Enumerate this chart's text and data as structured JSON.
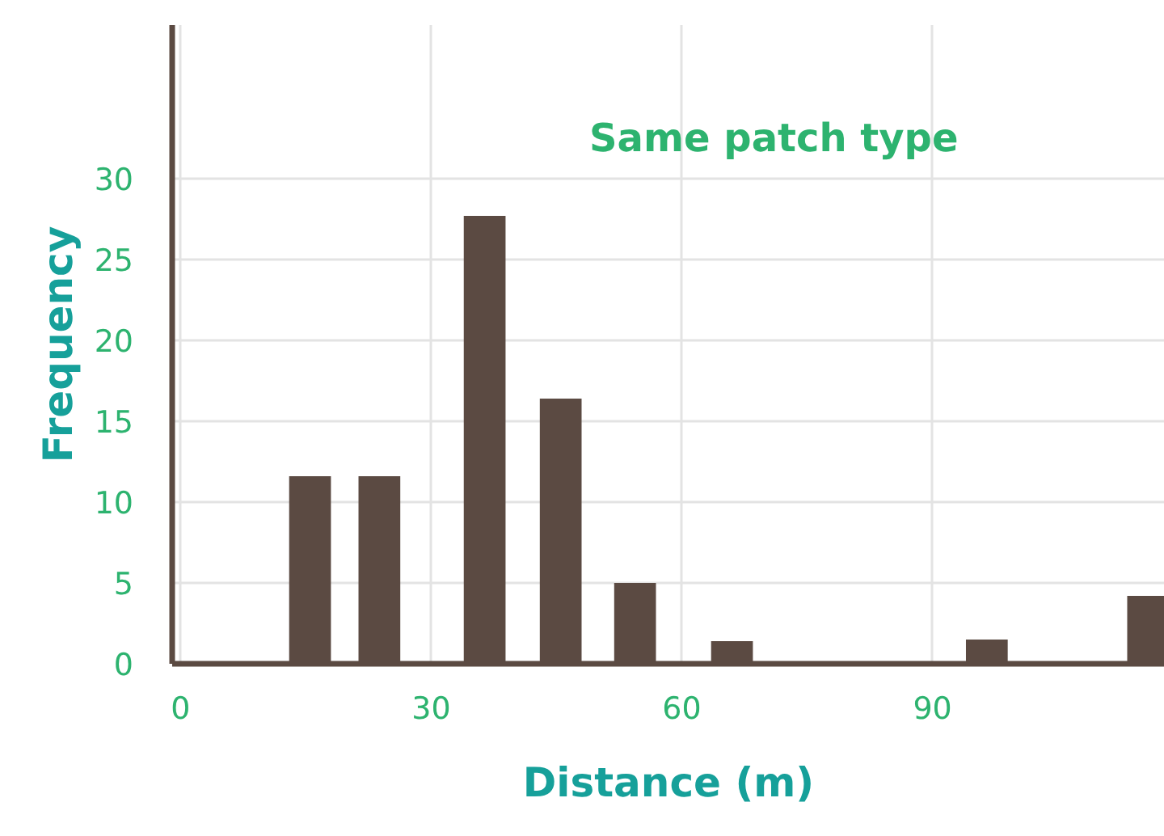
{
  "chart_data": {
    "type": "bar",
    "title": "Same patch type",
    "xlabel": "Distance (m)",
    "ylabel": "Frequency",
    "x": [
      15.5,
      23.8,
      36.4,
      45.5,
      54.4,
      66,
      96.5,
      115.8
    ],
    "values": [
      11.6,
      11.6,
      27.7,
      16.4,
      5.0,
      1.4,
      1.5,
      4.2
    ],
    "color": "#5b4a42",
    "xlim": [
      -1,
      117.8
    ],
    "xticks": [
      0,
      30,
      60,
      90
    ],
    "ylim": [
      0,
      39.5
    ],
    "yticks": [
      0,
      5,
      10,
      15,
      20,
      25,
      30
    ],
    "grid": true
  }
}
